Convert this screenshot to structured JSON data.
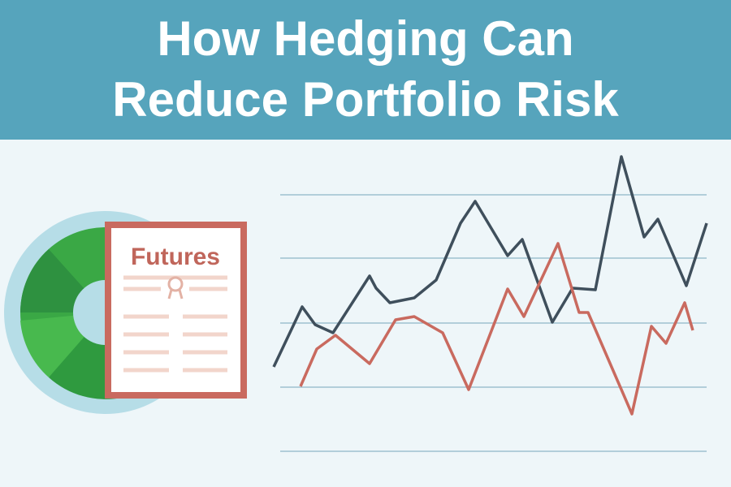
{
  "header": {
    "title_lines": [
      "How Hedging Can",
      "Reduce Portfolio Risk"
    ]
  },
  "document": {
    "label": "Futures"
  }
}
